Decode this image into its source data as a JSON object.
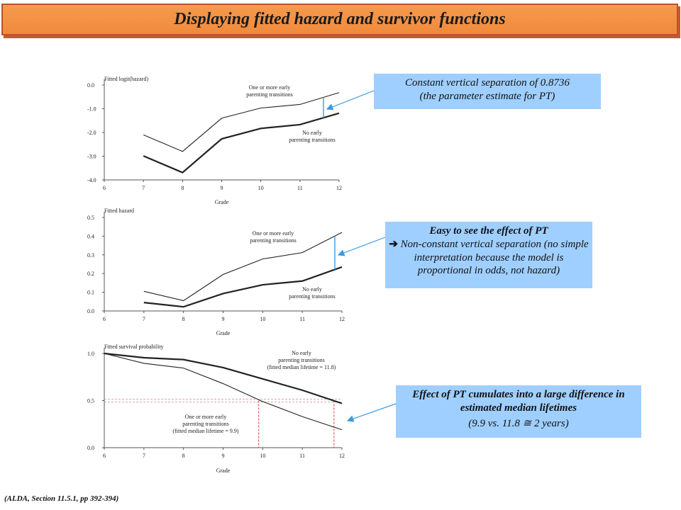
{
  "title": "Displaying fitted hazard and survivor functions",
  "source": "(ALDA, Section 11.5.1, pp 392-394)",
  "callouts": {
    "c1_line1": "Constant vertical separation of 0.8736",
    "c1_line2": "(the parameter estimate for PT)",
    "c2_head": "Easy to see the effect of PT",
    "c2_bullet": "Non-constant vertical separation (no simple interpretation because the model is proportional in odds, not hazard)",
    "c3_head": "Effect of PT cumulates into a large difference in estimated median lifetimes",
    "c3_body": "(9.9 vs. 11.8 ≅ 2 years)"
  },
  "colors": {
    "title_bg": "#f08a3c",
    "callout_bg": "#9fcfff",
    "arrow": "#3a9be0",
    "median_line": "#d03a3a"
  },
  "chart_data": [
    {
      "type": "line",
      "ylabel": "Fitted   logit(hazard)",
      "xlabel": "Grade",
      "x_ticks": [
        "6",
        "7",
        "8",
        "9",
        "10",
        "11",
        "12"
      ],
      "y_ticks": [
        "0.0",
        "-1.0",
        "-2.0",
        "-3.0",
        "-4.0"
      ],
      "xlim": [
        6,
        12
      ],
      "ylim": [
        -4.0,
        0.0
      ],
      "series": [
        {
          "name": "One or more early parenting transitions",
          "label_lines": [
            "One or more early",
            "parenting transitions"
          ],
          "x": [
            7,
            8,
            9,
            10,
            11,
            12
          ],
          "values": [
            -2.1,
            -2.8,
            -1.4,
            -0.97,
            -0.82,
            -0.32
          ]
        },
        {
          "name": "No early parenting transitions",
          "label_lines": [
            "No early",
            "parenting transitions"
          ],
          "x": [
            7,
            8,
            9,
            10,
            11,
            12
          ],
          "values": [
            -2.99,
            -3.69,
            -2.27,
            -1.83,
            -1.67,
            -1.19
          ]
        }
      ]
    },
    {
      "type": "line",
      "ylabel": "Fitted   hazard",
      "xlabel": "Grade",
      "x_ticks": [
        "6",
        "7",
        "8",
        "9",
        "10",
        "11",
        "12"
      ],
      "y_ticks": [
        "0.5",
        "0.4",
        "0.3",
        "0.2",
        "0.1",
        "0.0"
      ],
      "xlim": [
        6,
        12
      ],
      "ylim": [
        0,
        0.5
      ],
      "series": [
        {
          "name": "One or more early parenting transitions",
          "label_lines": [
            "One or more early",
            "parenting transitions"
          ],
          "x": [
            7,
            8,
            9,
            10,
            11,
            12
          ],
          "values": [
            0.105,
            0.055,
            0.195,
            0.278,
            0.312,
            0.42
          ]
        },
        {
          "name": "No early parenting transitions",
          "label_lines": [
            "No early",
            "parenting transitions"
          ],
          "x": [
            7,
            8,
            9,
            10,
            11,
            12
          ],
          "values": [
            0.045,
            0.022,
            0.093,
            0.14,
            0.16,
            0.235
          ]
        }
      ]
    },
    {
      "type": "line",
      "ylabel": "Fitted   survival   probability",
      "xlabel": "Grade",
      "x_ticks": [
        "6",
        "7",
        "8",
        "9",
        "10",
        "11",
        "12"
      ],
      "y_ticks": [
        "1.0",
        "0.5",
        "0.0"
      ],
      "xlim": [
        6,
        12
      ],
      "ylim": [
        0,
        1.0
      ],
      "series": [
        {
          "name": "No early parenting transitions",
          "label_lines": [
            "No early",
            "parenting transitions",
            "(fitted median lifetime = 11.8)"
          ],
          "x": [
            6,
            7,
            8,
            9,
            10,
            11,
            12
          ],
          "values": [
            1.0,
            0.955,
            0.935,
            0.85,
            0.73,
            0.61,
            0.47
          ]
        },
        {
          "name": "One or more early parenting transitions",
          "label_lines": [
            "One or more early",
            "parenting transitions",
            "(fitted median lifetime = 9.9)"
          ],
          "x": [
            6,
            7,
            8,
            9,
            10,
            11,
            12
          ],
          "values": [
            1.0,
            0.895,
            0.845,
            0.68,
            0.49,
            0.33,
            0.19
          ]
        }
      ],
      "medians": [
        9.9,
        11.8
      ],
      "reference_line": 0.5
    }
  ]
}
